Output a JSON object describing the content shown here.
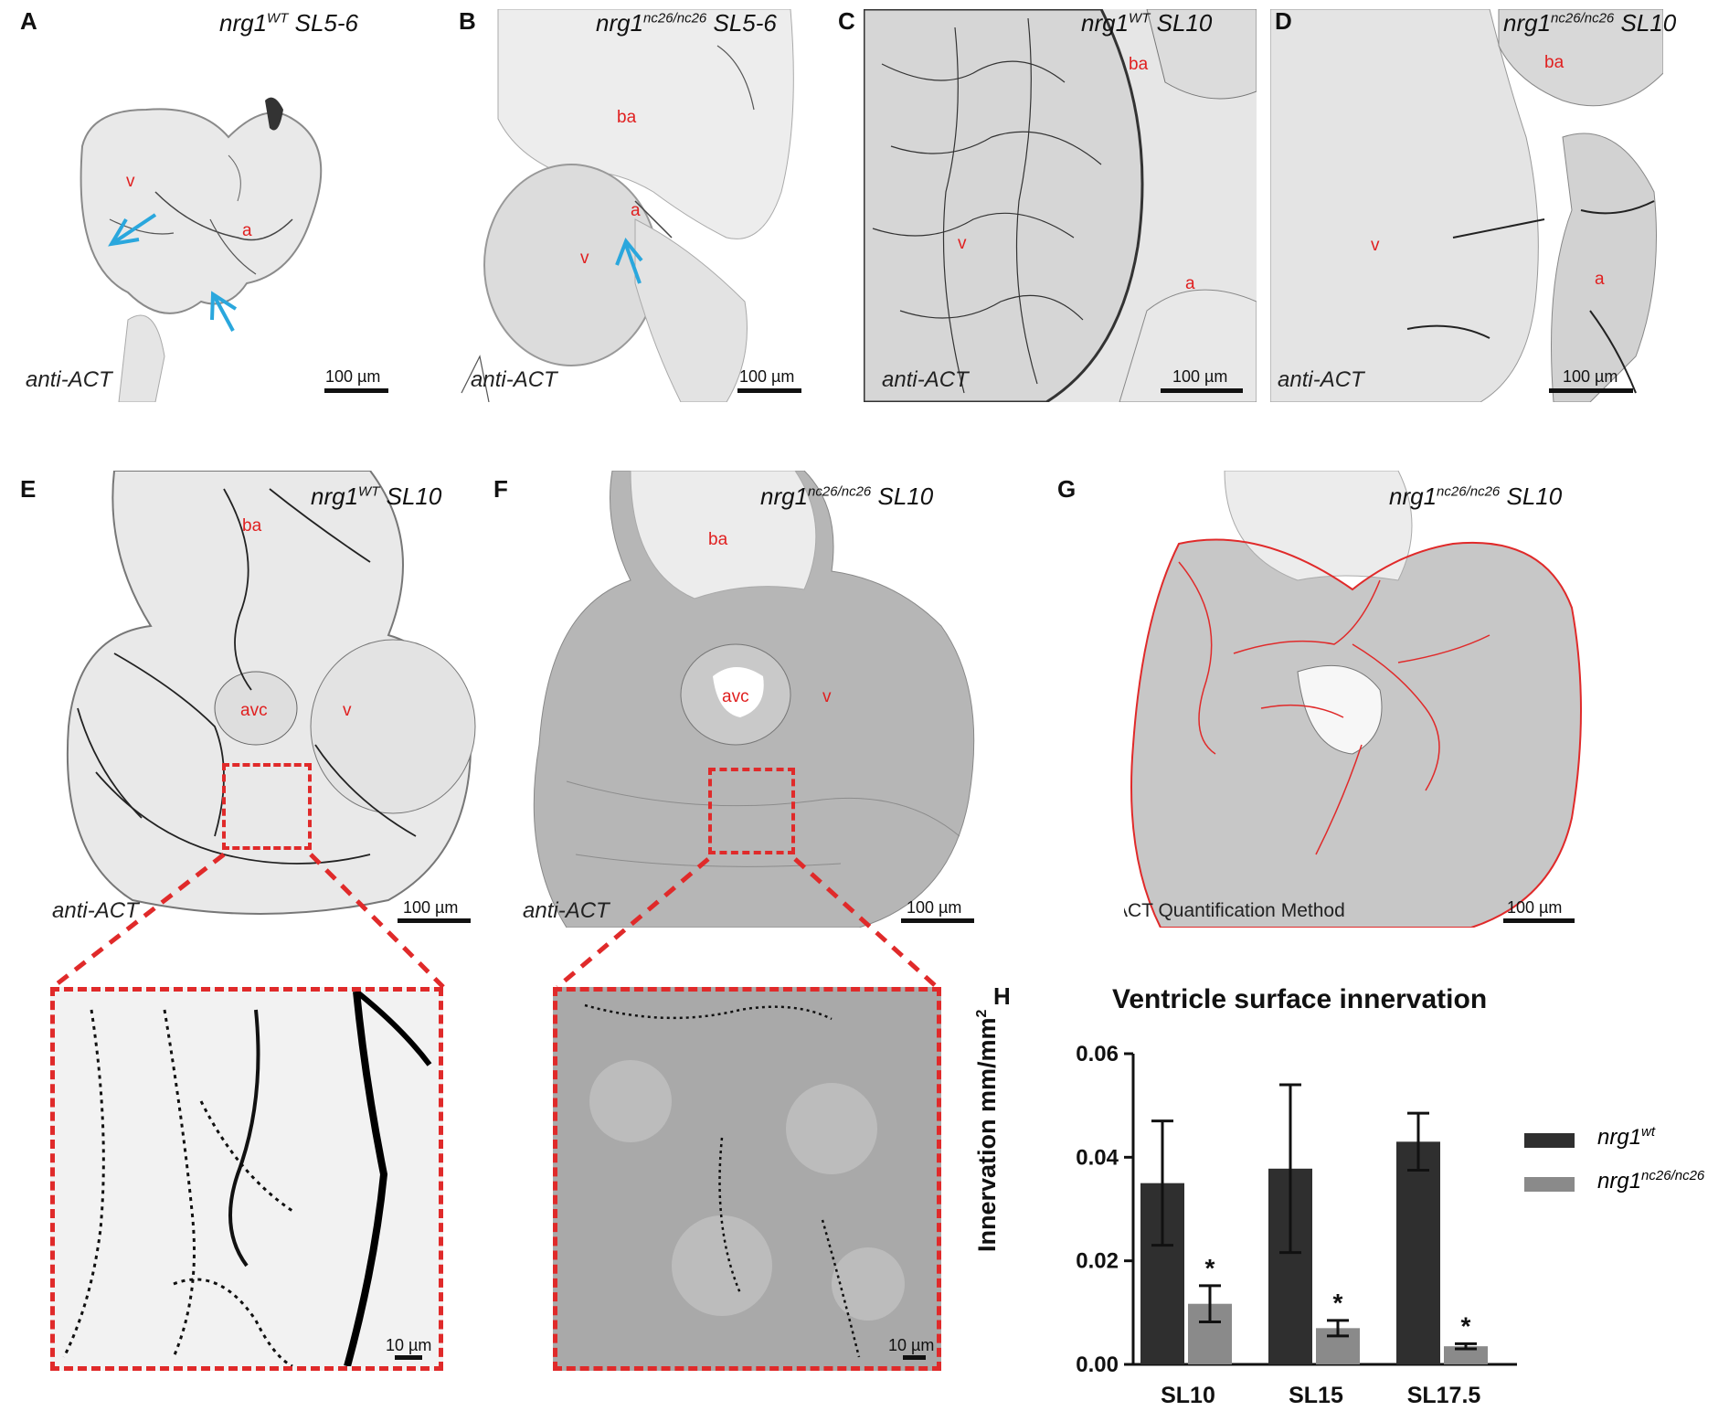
{
  "panels": {
    "A": {
      "letter": "A",
      "title": "nrg1",
      "sup": "WT",
      "stage": " SL5-6",
      "stain": "anti-ACT",
      "scale": "100 µm",
      "regions": [
        "v",
        "a"
      ]
    },
    "B": {
      "letter": "B",
      "title": "nrg1",
      "sup": "nc26/nc26",
      "stage": " SL5-6",
      "stain": "anti-ACT",
      "scale": "100 µm",
      "regions": [
        "ba",
        "a",
        "v"
      ]
    },
    "C": {
      "letter": "C",
      "title": "nrg1",
      "sup": "WT",
      "stage": " SL10",
      "stain": "anti-ACT",
      "scale": "100 µm",
      "regions": [
        "ba",
        "v",
        "a"
      ]
    },
    "D": {
      "letter": "D",
      "title": "nrg1",
      "sup": "nc26/nc26",
      "stage": " SL10",
      "stain": "anti-ACT",
      "scale": "100 µm",
      "regions": [
        "ba",
        "v",
        "a"
      ]
    },
    "E": {
      "letter": "E",
      "title": "nrg1",
      "sup": "WT",
      "stage": " SL10",
      "stain": "anti-ACT",
      "scale": "100 µm",
      "regions": [
        "ba",
        "avc",
        "v"
      ],
      "zoom_scale": "10 µm"
    },
    "F": {
      "letter": "F",
      "title": "nrg1",
      "sup": "nc26/nc26",
      "stage": " SL10",
      "stain": "anti-ACT",
      "scale": "100 µm",
      "regions": [
        "ba",
        "avc",
        "v"
      ],
      "zoom_scale": "10 µm"
    },
    "G": {
      "letter": "G",
      "title": "nrg1",
      "sup": "nc26/nc26",
      "stage": " SL10",
      "method": "ACT Quantification Method",
      "scale": "100 µm"
    },
    "H": {
      "letter": "H"
    }
  },
  "colors": {
    "annotation": "#e02a2a",
    "arrow": "#2aa7dd",
    "wt_bar": "#2f2f2f",
    "mutant_bar": "#8a8a8a"
  },
  "chart_data": {
    "type": "bar",
    "title": "Ventricle surface innervation",
    "ylabel": "Innervation mm/mm",
    "ylabel_sup": "2",
    "xlabel": "",
    "categories": [
      "SL10",
      "SL15",
      "SL17.5"
    ],
    "ylim": [
      0,
      0.06
    ],
    "yticks": [
      "0.00",
      "0.02",
      "0.04",
      "0.06"
    ],
    "series": [
      {
        "name": "nrg1",
        "name_sup": "wt",
        "values": [
          0.035,
          0.0378,
          0.043
        ],
        "error": [
          0.012,
          0.0162,
          0.0055
        ],
        "color": "#2f2f2f"
      },
      {
        "name": "nrg1",
        "name_sup": "nc26/nc26",
        "values": [
          0.0117,
          0.007,
          0.0035
        ],
        "error": [
          0.0035,
          0.0015,
          0.0005
        ],
        "color": "#8a8a8a"
      }
    ],
    "annotations": [
      "*",
      "*",
      "*"
    ],
    "legend": "right"
  }
}
